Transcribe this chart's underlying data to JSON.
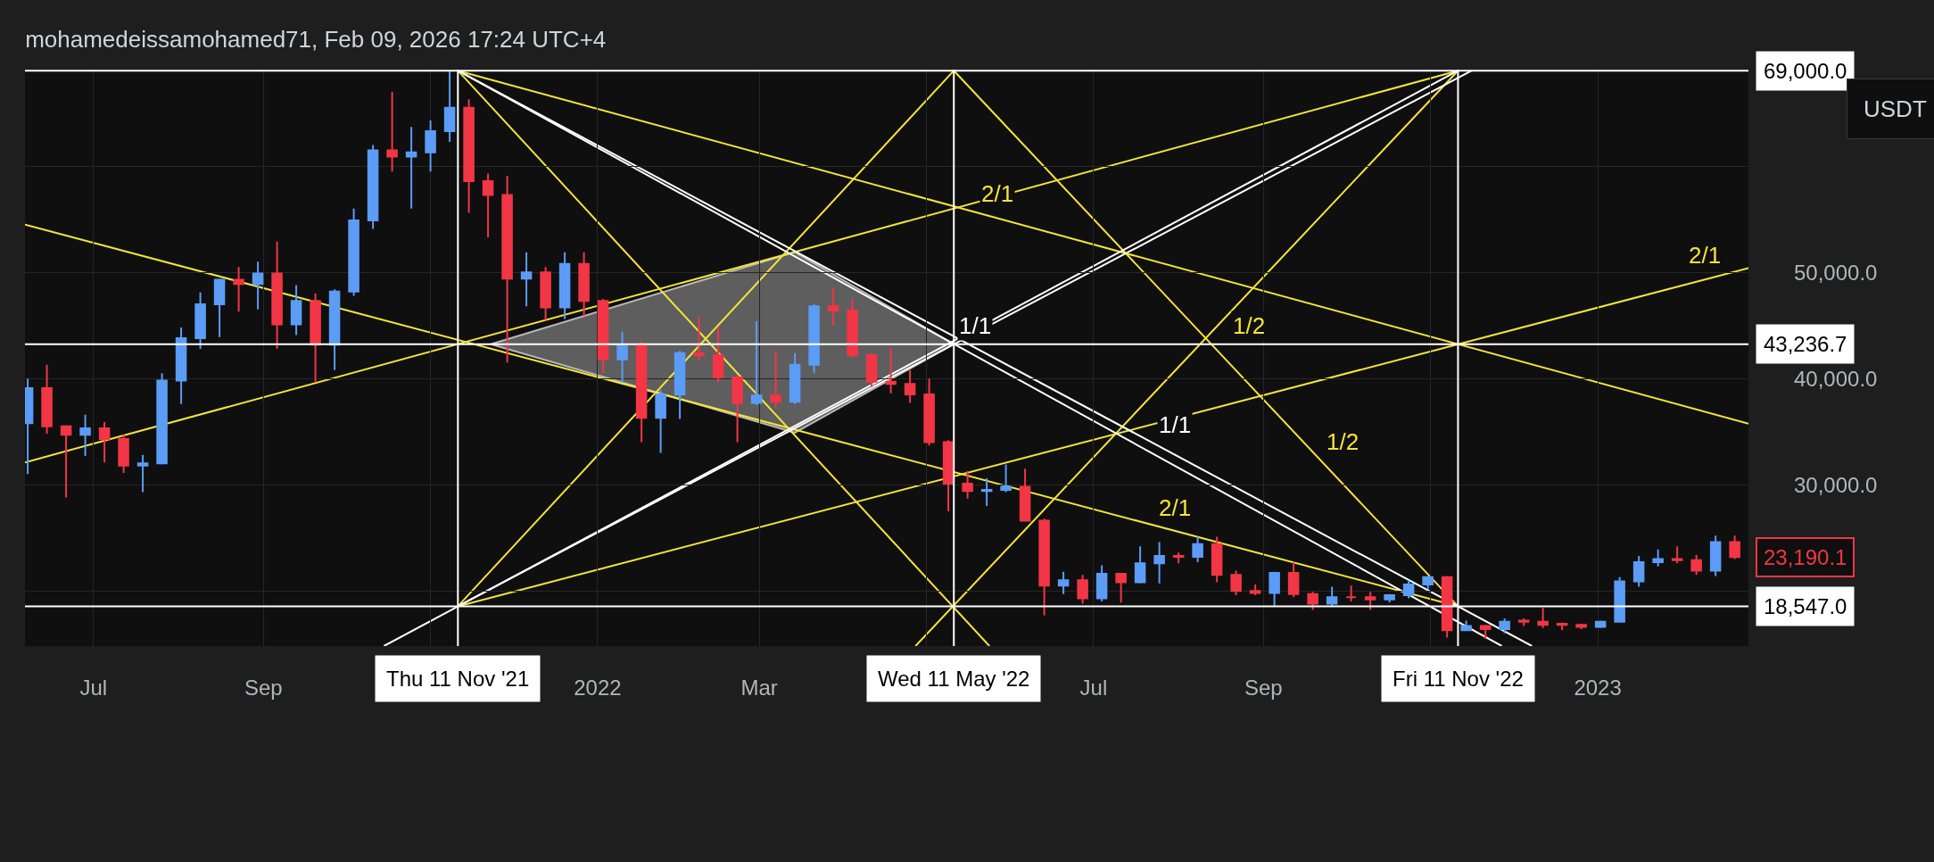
{
  "chart_data": {
    "type": "candlestick",
    "title": "mohamedeissamohamed71, Feb 09, 2026 17:24 UTC+4",
    "x": [
      "2021-06-07",
      "2021-06-14",
      "2021-06-21",
      "2021-06-28",
      "2021-07-05",
      "2021-07-12",
      "2021-07-19",
      "2021-07-26",
      "2021-08-02",
      "2021-08-09",
      "2021-08-16",
      "2021-08-23",
      "2021-08-30",
      "2021-09-06",
      "2021-09-13",
      "2021-09-20",
      "2021-09-27",
      "2021-10-04",
      "2021-10-11",
      "2021-10-18",
      "2021-10-25",
      "2021-11-01",
      "2021-11-08",
      "2021-11-15",
      "2021-11-22",
      "2021-11-29",
      "2021-12-06",
      "2021-12-13",
      "2021-12-20",
      "2021-12-27",
      "2022-01-03",
      "2022-01-10",
      "2022-01-17",
      "2022-01-24",
      "2022-01-31",
      "2022-02-07",
      "2022-02-14",
      "2022-02-21",
      "2022-02-28",
      "2022-03-07",
      "2022-03-14",
      "2022-03-21",
      "2022-03-28",
      "2022-04-04",
      "2022-04-11",
      "2022-04-18",
      "2022-04-25",
      "2022-05-02",
      "2022-05-09",
      "2022-05-16",
      "2022-05-23",
      "2022-05-30",
      "2022-06-06",
      "2022-06-13",
      "2022-06-20",
      "2022-06-27",
      "2022-07-04",
      "2022-07-11",
      "2022-07-18",
      "2022-07-25",
      "2022-08-01",
      "2022-08-08",
      "2022-08-15",
      "2022-08-22",
      "2022-08-29",
      "2022-09-05",
      "2022-09-12",
      "2022-09-19",
      "2022-09-26",
      "2022-10-03",
      "2022-10-10",
      "2022-10-17",
      "2022-10-24",
      "2022-10-31",
      "2022-11-07",
      "2022-11-14",
      "2022-11-21",
      "2022-11-28",
      "2022-12-05",
      "2022-12-12",
      "2022-12-19",
      "2022-12-26",
      "2023-01-02",
      "2023-01-09",
      "2023-01-16",
      "2023-01-23",
      "2023-01-30",
      "2023-02-06",
      "2023-02-13",
      "2023-02-20"
    ],
    "ohlc": [
      [
        35800,
        40000,
        31000,
        39100
      ],
      [
        39100,
        41300,
        34800,
        35500
      ],
      [
        35500,
        35600,
        28800,
        34700
      ],
      [
        34700,
        36600,
        32700,
        35300
      ],
      [
        35300,
        35900,
        32100,
        34300
      ],
      [
        34300,
        34700,
        31100,
        31800
      ],
      [
        31800,
        32800,
        29300,
        32000
      ],
      [
        32000,
        40500,
        31900,
        39800
      ],
      [
        39800,
        44800,
        37600,
        43800
      ],
      [
        43800,
        48100,
        42800,
        47000
      ],
      [
        47000,
        49400,
        43900,
        49300
      ],
      [
        49300,
        50500,
        46300,
        48900
      ],
      [
        48900,
        51000,
        46500,
        49900
      ],
      [
        49900,
        52900,
        42800,
        45100
      ],
      [
        45100,
        48800,
        44100,
        47300
      ],
      [
        47300,
        48000,
        39700,
        43200
      ],
      [
        43200,
        48400,
        40800,
        48200
      ],
      [
        48200,
        56000,
        47800,
        54900
      ],
      [
        54900,
        62000,
        54100,
        61500
      ],
      [
        61500,
        67000,
        59500,
        60900
      ],
      [
        60900,
        63700,
        56000,
        61300
      ],
      [
        61300,
        64300,
        59500,
        63300
      ],
      [
        63300,
        69000,
        62300,
        65500
      ],
      [
        65500,
        66300,
        55600,
        58600
      ],
      [
        58600,
        59300,
        53300,
        57300
      ],
      [
        57300,
        59100,
        41500,
        49400
      ],
      [
        49400,
        51900,
        46800,
        50000
      ],
      [
        50000,
        50500,
        45500,
        46700
      ],
      [
        46700,
        51900,
        45600,
        50800
      ],
      [
        50800,
        51900,
        45900,
        47300
      ],
      [
        47300,
        47500,
        40500,
        41800
      ],
      [
        41800,
        44400,
        39600,
        43100
      ],
      [
        43100,
        43500,
        34000,
        36300
      ],
      [
        36300,
        38900,
        33000,
        38500
      ],
      [
        38500,
        42600,
        36200,
        42400
      ],
      [
        42400,
        45800,
        41700,
        42200
      ],
      [
        42200,
        44800,
        39600,
        40100
      ],
      [
        40100,
        40300,
        34000,
        37700
      ],
      [
        37700,
        45400,
        37500,
        38400
      ],
      [
        38400,
        42600,
        37200,
        37800
      ],
      [
        37800,
        42400,
        37600,
        41300
      ],
      [
        41300,
        47000,
        40500,
        46800
      ],
      [
        46800,
        48500,
        45000,
        46400
      ],
      [
        46400,
        47500,
        42000,
        42200
      ],
      [
        42200,
        42400,
        39200,
        39700
      ],
      [
        39700,
        42900,
        38600,
        39500
      ],
      [
        39500,
        40800,
        37700,
        38500
      ],
      [
        38500,
        40000,
        33700,
        34000
      ],
      [
        34000,
        34200,
        27500,
        30100
      ],
      [
        30100,
        31300,
        28700,
        29400
      ],
      [
        29400,
        30600,
        28000,
        29500
      ],
      [
        29500,
        31900,
        29300,
        29800
      ],
      [
        29800,
        31500,
        26600,
        26600
      ],
      [
        26600,
        26800,
        17700,
        20500
      ],
      [
        20500,
        21800,
        19700,
        21000
      ],
      [
        21000,
        21500,
        18800,
        19300
      ],
      [
        19300,
        22400,
        19000,
        21600
      ],
      [
        21600,
        21700,
        18900,
        20800
      ],
      [
        20800,
        24200,
        20700,
        22600
      ],
      [
        22600,
        24600,
        20700,
        23300
      ],
      [
        23300,
        23600,
        22600,
        23200
      ],
      [
        23200,
        25100,
        22700,
        24400
      ],
      [
        24400,
        25100,
        20800,
        21500
      ],
      [
        21500,
        21900,
        19600,
        20000
      ],
      [
        20000,
        20600,
        19600,
        19800
      ],
      [
        19800,
        21800,
        18500,
        21700
      ],
      [
        21700,
        22700,
        19400,
        19700
      ],
      [
        19700,
        19900,
        18200,
        18800
      ],
      [
        18800,
        20400,
        18500,
        19400
      ],
      [
        19400,
        20500,
        19000,
        19400
      ],
      [
        19400,
        19900,
        18200,
        19200
      ],
      [
        19200,
        19700,
        18900,
        19600
      ],
      [
        19600,
        21000,
        19300,
        20600
      ],
      [
        20600,
        21400,
        20100,
        21300
      ],
      [
        21300,
        21400,
        15600,
        16300
      ],
      [
        16300,
        17200,
        16200,
        16700
      ],
      [
        16700,
        16800,
        15500,
        16400
      ],
      [
        16400,
        17400,
        16000,
        17100
      ],
      [
        17100,
        17400,
        16700,
        17200
      ],
      [
        17100,
        18400,
        16500,
        16800
      ],
      [
        16800,
        17000,
        16300,
        16900
      ],
      [
        16800,
        16900,
        16400,
        16600
      ],
      [
        16600,
        17200,
        16500,
        17100
      ],
      [
        17100,
        21300,
        17100,
        20900
      ],
      [
        20900,
        23300,
        20400,
        22700
      ],
      [
        22700,
        23900,
        22300,
        23000
      ],
      [
        23000,
        24200,
        22600,
        22900
      ],
      [
        22900,
        23400,
        21500,
        21900
      ],
      [
        21900,
        25200,
        21400,
        24600
      ],
      [
        24600,
        25200,
        23000,
        23190.1
      ]
    ],
    "colors": [
      "#5b9cf6",
      "#f23645",
      "#f23645",
      "#5b9cf6",
      "#f23645",
      "#f23645",
      "#5b9cf6",
      "#5b9cf6",
      "#5b9cf6",
      "#5b9cf6",
      "#5b9cf6",
      "#f23645",
      "#5b9cf6",
      "#f23645",
      "#5b9cf6",
      "#f23645",
      "#5b9cf6",
      "#5b9cf6",
      "#5b9cf6",
      "#f23645",
      "#5b9cf6",
      "#5b9cf6",
      "#5b9cf6",
      "#f23645",
      "#f23645",
      "#f23645",
      "#5b9cf6",
      "#f23645",
      "#5b9cf6",
      "#f23645",
      "#f23645",
      "#5b9cf6",
      "#f23645",
      "#5b9cf6",
      "#5b9cf6",
      "#f23645",
      "#f23645",
      "#f23645",
      "#5b9cf6",
      "#f23645",
      "#5b9cf6",
      "#5b9cf6",
      "#f23645",
      "#f23645",
      "#f23645",
      "#f23645",
      "#f23645",
      "#f23645",
      "#f23645",
      "#f23645",
      "#5b9cf6",
      "#5b9cf6",
      "#f23645",
      "#f23645",
      "#5b9cf6",
      "#f23645",
      "#5b9cf6",
      "#f23645",
      "#5b9cf6",
      "#5b9cf6",
      "#f23645",
      "#5b9cf6",
      "#f23645",
      "#f23645",
      "#f23645",
      "#5b9cf6",
      "#f23645",
      "#f23645",
      "#5b9cf6",
      "#f23645",
      "#f23645",
      "#5b9cf6",
      "#5b9cf6",
      "#5b9cf6",
      "#f23645",
      "#5b9cf6",
      "#f23645",
      "#5b9cf6",
      "#f23645",
      "#f23645",
      "#f23645",
      "#f23645",
      "#5b9cf6",
      "#5b9cf6",
      "#5b9cf6",
      "#5b9cf6",
      "#f23645",
      "#f23645",
      "#5b9cf6",
      "#f23645"
    ],
    "series": [
      {
        "type": "area",
        "color": "#808080",
        "x": [
          "2021-11-23",
          "2022-03-14",
          "2022-05-11",
          "2022-03-14",
          "2021-11-23"
        ],
        "values": [
          43236.7,
          51900,
          43236.7,
          34900,
          43236.7
        ]
      },
      {
        "type": "line",
        "color": "#f5e33b",
        "x": [
          "2021-11-11",
          "2023-02-25"
        ],
        "values": [
          69000,
          35755
        ]
      },
      {
        "type": "line",
        "color": "#f5e33b",
        "x": [
          "2021-11-11",
          "2022-05-24"
        ],
        "values": [
          69000,
          14800
        ]
      },
      {
        "type": "line",
        "color": "#f5e33b",
        "x": [
          "2021-11-11",
          "2022-05-11"
        ],
        "values": [
          18547,
          69000
        ]
      },
      {
        "type": "line",
        "color": "#f5e33b",
        "x": [
          "2021-11-11",
          "2023-02-25"
        ],
        "values": [
          18547,
          50400
        ]
      },
      {
        "type": "line",
        "color": "#f5e33b",
        "x": [
          "2021-06-06",
          "2022-11-11"
        ],
        "values": [
          32100,
          69000
        ]
      },
      {
        "type": "line",
        "color": "#f5e33b",
        "x": [
          "2021-06-06",
          "2022-11-11"
        ],
        "values": [
          54500,
          18547
        ]
      },
      {
        "type": "line",
        "color": "#f5e33b",
        "x": [
          "2022-05-11",
          "2022-11-11"
        ],
        "values": [
          69000,
          18547
        ]
      },
      {
        "type": "line",
        "color": "#f5e33b",
        "x": [
          "2022-04-27",
          "2022-11-11"
        ],
        "values": [
          14800,
          69000
        ]
      },
      {
        "type": "line",
        "color": "#ffffff",
        "x": [
          "2021-11-11",
          "2022-12-08"
        ],
        "values": [
          69000,
          14800
        ]
      },
      {
        "type": "line",
        "color": "#ffffff",
        "x": [
          "2021-11-11",
          "2022-11-27"
        ],
        "values": [
          69000,
          14800
        ]
      },
      {
        "type": "line",
        "color": "#ffffff",
        "x": [
          "2021-10-15",
          "2022-11-11"
        ],
        "values": [
          14800,
          69000
        ]
      },
      {
        "type": "line",
        "color": "#ffffff",
        "x": [
          "2021-11-11",
          "2022-11-16"
        ],
        "values": [
          18547,
          69000
        ]
      }
    ],
    "xlim": [
      "2021-06-06",
      "2023-02-25"
    ],
    "xticks": [
      {
        "value": "2021-07-01",
        "label": "Jul"
      },
      {
        "value": "2021-09-01",
        "label": "Sep"
      },
      {
        "value": "2021-11-01",
        "label": null
      },
      {
        "value": "2022-01-01",
        "label": "2022"
      },
      {
        "value": "2022-03-01",
        "label": "Mar"
      },
      {
        "value": "2022-05-01",
        "label": null
      },
      {
        "value": "2022-07-01",
        "label": "Jul"
      },
      {
        "value": "2022-09-01",
        "label": "Sep"
      },
      {
        "value": "2022-11-01",
        "label": null
      },
      {
        "value": "2023-01-01",
        "label": "2023"
      }
    ],
    "ylim": [
      14800,
      69100
    ],
    "yticks": [
      {
        "value": 20000,
        "label": null
      },
      {
        "value": 30000,
        "label": "30,000.0"
      },
      {
        "value": 40000,
        "label": "40,000.0"
      },
      {
        "value": 50000,
        "label": "50,000.0"
      },
      {
        "value": 60000,
        "label": null
      }
    ],
    "grid": true,
    "ref_lines": [
      {
        "axis": "y",
        "value": 69000,
        "label": "69,000.0",
        "color": "#ffffff"
      },
      {
        "axis": "y",
        "value": 43236.7,
        "label": "43,236.7",
        "color": "#ffffff"
      },
      {
        "axis": "y",
        "value": 18547,
        "label": "18,547.0",
        "color": "#ffffff"
      },
      {
        "axis": "x",
        "value": "2021-11-11",
        "label": "Thu 11 Nov '21",
        "color": "#ffffff"
      },
      {
        "axis": "x",
        "value": "2022-05-11",
        "label": "Wed 11 May '22",
        "color": "#ffffff"
      },
      {
        "axis": "x",
        "value": "2022-11-11",
        "label": "Fri 11 Nov '22",
        "color": "#ffffff"
      }
    ],
    "annotations": [
      "USDT",
      {
        "text": "23,190.1",
        "x": "2023-02-20",
        "y": 23190.1
      },
      {
        "text": "2/1",
        "x": "2022-05-19",
        "y": 55660
      },
      {
        "text": "1/1",
        "x": "2022-05-11",
        "y": 43236.7
      },
      {
        "text": "1/2",
        "x": "2022-08-19",
        "y": 43236.7
      },
      {
        "text": "1/1",
        "x": "2022-07-23",
        "y": 33900
      },
      {
        "text": "1/2",
        "x": "2022-09-22",
        "y": 32300
      },
      {
        "text": "2/1",
        "x": "2022-07-23",
        "y": 26050
      },
      {
        "text": "2/1",
        "x": "2023-02-17",
        "y": 49860
      }
    ]
  }
}
